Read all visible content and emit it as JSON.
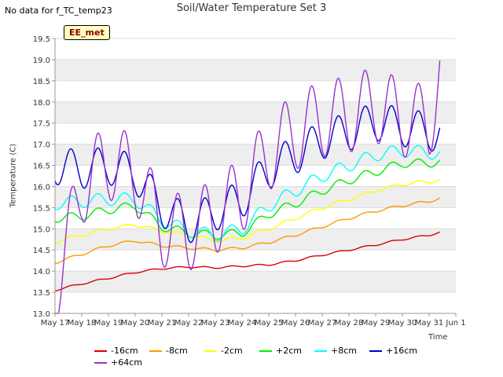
{
  "header": {
    "nodata_text": "No data for f_TC_temp23",
    "title": "Soil/Water Temperature Set 3",
    "badge": "EE_met"
  },
  "chart_data": {
    "type": "line",
    "title": "Soil/Water Temperature Set 3",
    "xlabel": "Time",
    "ylabel": "Temperature (C)",
    "ylim": [
      13.0,
      19.5
    ],
    "xlim": [
      "May 17",
      "Jun 1"
    ],
    "x_ticks": [
      "May 17",
      "May 18",
      "May 19",
      "May 20",
      "May 21",
      "May 22",
      "May 23",
      "May 24",
      "May 25",
      "May 26",
      "May 27",
      "May 28",
      "May 29",
      "May 30",
      "May 31",
      "Jun 1"
    ],
    "y_ticks": [
      "13.0",
      "13.5",
      "14.0",
      "14.5",
      "15.0",
      "15.5",
      "16.0",
      "16.5",
      "17.0",
      "17.5",
      "18.0",
      "18.5",
      "19.0",
      "19.5"
    ],
    "grid": true,
    "legend_position": "bottom",
    "x_day_values": [
      0,
      1,
      2,
      3,
      4,
      5,
      6,
      7,
      8,
      9,
      10,
      11,
      12,
      13,
      14,
      14.4
    ],
    "series": [
      {
        "name": "-16cm",
        "color": "#dd0000",
        "values": [
          13.55,
          13.7,
          13.83,
          13.97,
          14.06,
          14.1,
          14.08,
          14.12,
          14.15,
          14.25,
          14.38,
          14.5,
          14.62,
          14.75,
          14.85,
          14.92
        ]
      },
      {
        "name": "-8cm",
        "color": "#ff9900",
        "values": [
          14.2,
          14.4,
          14.6,
          14.72,
          14.6,
          14.55,
          14.5,
          14.55,
          14.68,
          14.85,
          15.05,
          15.25,
          15.42,
          15.55,
          15.65,
          15.72
        ]
      },
      {
        "name": "-2cm",
        "color": "#ffff00",
        "values": [
          14.7,
          14.85,
          15.0,
          15.1,
          14.95,
          14.85,
          14.72,
          14.78,
          15.0,
          15.25,
          15.5,
          15.7,
          15.9,
          16.05,
          16.12,
          16.15
        ]
      },
      {
        "name": "+2cm",
        "color": "#00ee00",
        "values": [
          15.25,
          15.3,
          15.45,
          15.55,
          15.05,
          14.9,
          14.85,
          14.9,
          15.35,
          15.6,
          15.9,
          16.15,
          16.35,
          16.55,
          16.55,
          16.6
        ]
      },
      {
        "name": "+8cm",
        "color": "#00ffff",
        "values": [
          15.6,
          15.65,
          15.7,
          15.7,
          15.2,
          14.95,
          14.85,
          15.0,
          15.55,
          15.9,
          16.25,
          16.5,
          16.75,
          16.85,
          16.8,
          16.78
        ]
      },
      {
        "name": "+16cm",
        "color": "#0000cc",
        "values": [
          16.5,
          16.4,
          16.5,
          16.3,
          15.5,
          15.1,
          15.4,
          15.7,
          16.4,
          16.75,
          17.1,
          17.3,
          17.55,
          17.4,
          17.3,
          17.25
        ]
      },
      {
        "name": "+64cm",
        "color": "#9933cc",
        "values": [
          13.55,
          16.0,
          16.6,
          16.3,
          15.0,
          14.9,
          15.3,
          15.8,
          16.8,
          17.3,
          17.6,
          17.7,
          17.95,
          17.6,
          17.5,
          18.7
        ]
      }
    ]
  }
}
